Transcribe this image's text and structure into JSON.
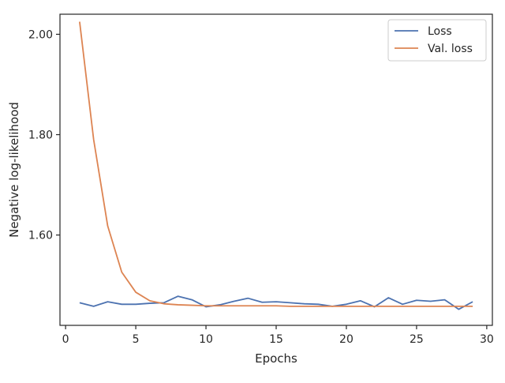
{
  "chart_data": {
    "type": "line",
    "xlabel": "Epochs",
    "ylabel": "Negative log-likelihood",
    "xlim": [
      -0.4,
      30.4
    ],
    "ylim": [
      1.42,
      2.04
    ],
    "xticks": [
      0,
      5,
      10,
      15,
      20,
      25,
      30
    ],
    "xtick_labels": [
      "0",
      "5",
      "10",
      "15",
      "20",
      "25",
      "30"
    ],
    "yticks": [
      1.6,
      1.8,
      2.0
    ],
    "ytick_labels": [
      "1.60",
      "1.80",
      "2.00"
    ],
    "grid": false,
    "legend": "top-right",
    "series": [
      {
        "name": "Loss",
        "color": "#4c72b0",
        "x": [
          1,
          2,
          3,
          4,
          5,
          6,
          7,
          8,
          9,
          10,
          11,
          12,
          13,
          14,
          15,
          16,
          17,
          18,
          19,
          20,
          21,
          22,
          23,
          24,
          25,
          26,
          27,
          28,
          29
        ],
        "y": [
          1.465,
          1.458,
          1.467,
          1.462,
          1.462,
          1.464,
          1.465,
          1.478,
          1.471,
          1.457,
          1.461,
          1.468,
          1.474,
          1.466,
          1.467,
          1.465,
          1.463,
          1.462,
          1.458,
          1.462,
          1.469,
          1.457,
          1.475,
          1.462,
          1.47,
          1.468,
          1.471,
          1.452,
          1.467
        ]
      },
      {
        "name": "Val. loss",
        "color": "#dd8452",
        "x": [
          1,
          2,
          3,
          4,
          5,
          6,
          7,
          8,
          9,
          10,
          11,
          12,
          13,
          14,
          15,
          16,
          17,
          18,
          19,
          20,
          21,
          22,
          23,
          24,
          25,
          26,
          27,
          28,
          29
        ],
        "y": [
          2.025,
          1.79,
          1.618,
          1.526,
          1.486,
          1.469,
          1.463,
          1.461,
          1.46,
          1.459,
          1.459,
          1.459,
          1.459,
          1.459,
          1.459,
          1.458,
          1.458,
          1.458,
          1.458,
          1.458,
          1.458,
          1.458,
          1.458,
          1.458,
          1.458,
          1.458,
          1.458,
          1.458,
          1.458
        ]
      }
    ]
  }
}
